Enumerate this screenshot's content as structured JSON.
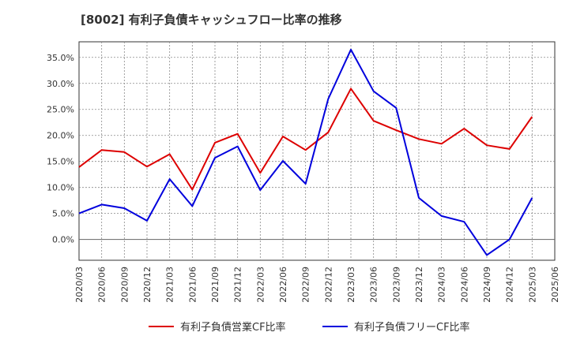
{
  "chart_data": {
    "type": "line",
    "title": "[8002]  有利子負債キャッシュフロー比率の推移",
    "x": [
      "2020/03",
      "2020/06",
      "2020/09",
      "2020/12",
      "2021/03",
      "2021/06",
      "2021/09",
      "2021/12",
      "2022/03",
      "2022/06",
      "2022/09",
      "2022/12",
      "2023/03",
      "2023/06",
      "2023/09",
      "2023/12",
      "2024/03",
      "2024/06",
      "2024/09",
      "2024/12",
      "2025/03",
      "2025/06"
    ],
    "series": [
      {
        "name": "有利子負債営業CF比率",
        "color": "#dd0000",
        "values": [
          13.9,
          17.2,
          16.8,
          14.0,
          16.4,
          9.6,
          18.6,
          20.3,
          12.8,
          19.8,
          17.2,
          20.6,
          29.0,
          22.8,
          21.0,
          19.3,
          18.4,
          21.3,
          18.1,
          17.4,
          23.6,
          null
        ]
      },
      {
        "name": "有利子負債フリーCF比率",
        "color": "#0000dd",
        "values": [
          5.0,
          6.7,
          6.0,
          3.6,
          11.6,
          6.4,
          15.7,
          17.9,
          9.5,
          15.1,
          10.7,
          27.0,
          36.5,
          28.5,
          25.3,
          8.0,
          4.5,
          3.4,
          -3.0,
          0.0,
          8.0,
          null
        ]
      }
    ],
    "y_ticks": [
      "0.0%",
      "5.0%",
      "10.0%",
      "15.0%",
      "20.0%",
      "25.0%",
      "30.0%",
      "35.0%"
    ],
    "ylim": [
      -4,
      38
    ],
    "grid": true,
    "legend_position": "bottom"
  }
}
